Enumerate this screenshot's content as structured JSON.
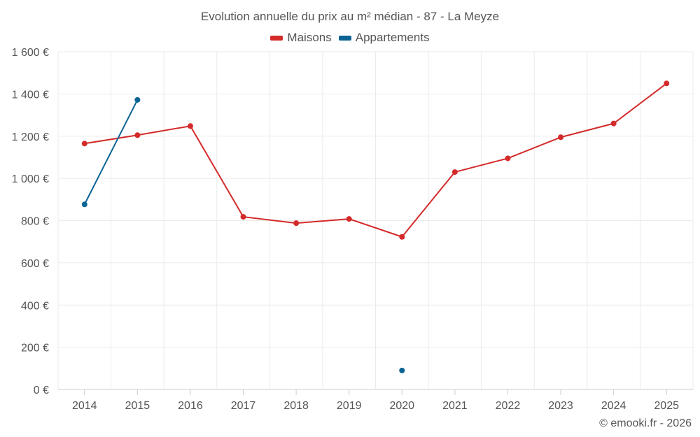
{
  "chart_data": {
    "type": "line",
    "title": "Evolution annuelle du prix au m² médian - 87 - La Meyze",
    "categories": [
      "2014",
      "2015",
      "2016",
      "2017",
      "2018",
      "2019",
      "2020",
      "2021",
      "2022",
      "2023",
      "2024",
      "2025"
    ],
    "ylim": [
      0,
      1600
    ],
    "yticks": [
      0,
      200,
      400,
      600,
      800,
      1000,
      1200,
      1400,
      1600
    ],
    "ytick_labels": [
      "0 €",
      "200 €",
      "400 €",
      "600 €",
      "800 €",
      "1 000 €",
      "1 200 €",
      "1 400 €",
      "1 600 €"
    ],
    "xlabel": "",
    "ylabel": "",
    "grid": true,
    "legend_position": "top-center",
    "series": [
      {
        "name": "Maisons",
        "color": "#d42a2a",
        "values": [
          1165,
          1205,
          1248,
          818,
          788,
          808,
          723,
          1030,
          1095,
          1195,
          1260,
          1450
        ]
      },
      {
        "name": "Appartements",
        "color": "#0b6394",
        "values": [
          877,
          1372,
          null,
          null,
          null,
          null,
          90,
          null,
          null,
          null,
          null,
          null
        ]
      }
    ]
  },
  "credit": "© emooki.fr - 2026"
}
